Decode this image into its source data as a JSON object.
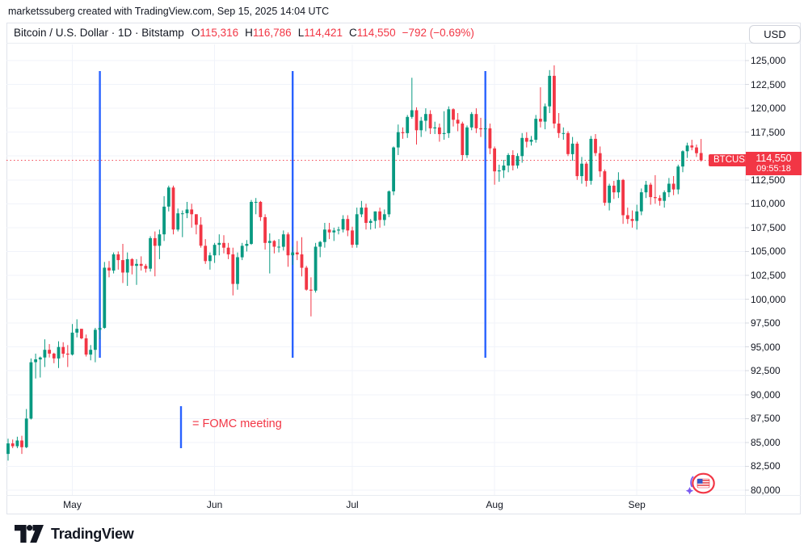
{
  "attribution": "marketssuberg created with TradingView.com, Sep 15, 2025 14:04 UTC",
  "header": {
    "title": "Bitcoin / U.S. Dollar · 1D · Bitstamp",
    "ohlc": {
      "o_label": "O",
      "o": "115,316",
      "h_label": "H",
      "h": "116,786",
      "l_label": "L",
      "l": "114,421",
      "c_label": "C",
      "c": "114,550",
      "change": "−792 (−0.69%)"
    },
    "currency": "USD"
  },
  "price_label": {
    "symbol": "BTCUSD",
    "price": "114,550",
    "countdown": "09:55:18"
  },
  "legend": {
    "text": "= FOMC meeting"
  },
  "footer": {
    "brand": "TradingView"
  },
  "colors": {
    "up": "#089981",
    "down": "#f23645",
    "fomc_line": "#2962ff",
    "grid": "#f0f3fa",
    "axis_text": "#131722",
    "label_bg": "#f23645"
  },
  "chart_data": {
    "type": "candlestick",
    "title": "Bitcoin / U.S. Dollar, 1D, Bitstamp",
    "last_price": 114550,
    "y_axis": {
      "min": 80000,
      "max": 125000,
      "step": 2500
    },
    "x_axis": {
      "ticks": [
        {
          "label": "May",
          "index": 14
        },
        {
          "label": "Jun",
          "index": 45
        },
        {
          "label": "Jul",
          "index": 75
        },
        {
          "label": "Aug",
          "index": 106
        },
        {
          "label": "Sep",
          "index": 137
        }
      ]
    },
    "fomc_indices": [
      20,
      62,
      104
    ],
    "grid": true,
    "legend_position": "lower-left",
    "candles": [
      [
        83800,
        85400,
        83100,
        84900
      ],
      [
        84900,
        85300,
        84400,
        84600
      ],
      [
        84600,
        85600,
        84400,
        85200
      ],
      [
        85200,
        85700,
        83800,
        84500
      ],
      [
        84500,
        88500,
        84400,
        87500
      ],
      [
        87500,
        93800,
        87400,
        93400
      ],
      [
        93400,
        94300,
        91700,
        93700
      ],
      [
        93700,
        94000,
        91800,
        93900
      ],
      [
        93900,
        95800,
        92900,
        94700
      ],
      [
        94700,
        95300,
        93900,
        94300
      ],
      [
        94300,
        94400,
        93300,
        93800
      ],
      [
        93800,
        95600,
        92800,
        95000
      ],
      [
        95000,
        95500,
        93900,
        94300
      ],
      [
        94300,
        95200,
        92900,
        94200
      ],
      [
        94200,
        97400,
        94100,
        96500
      ],
      [
        96500,
        97900,
        96000,
        96900
      ],
      [
        96900,
        96900,
        95800,
        95900
      ],
      [
        95900,
        96300,
        94000,
        94200
      ],
      [
        94200,
        95200,
        93600,
        94700
      ],
      [
        94700,
        97000,
        93400,
        96800
      ],
      [
        96800,
        97700,
        95800,
        97000
      ],
      [
        97000,
        103900,
        96900,
        103300
      ],
      [
        103300,
        104000,
        102300,
        103000
      ],
      [
        103000,
        104900,
        102700,
        104700
      ],
      [
        104700,
        105000,
        103100,
        104100
      ],
      [
        104100,
        105800,
        101700,
        102800
      ],
      [
        102800,
        104900,
        101400,
        104200
      ],
      [
        104200,
        104300,
        102600,
        103500
      ],
      [
        103500,
        104200,
        101500,
        103700
      ],
      [
        103700,
        104500,
        103000,
        103500
      ],
      [
        103500,
        103700,
        102800,
        103200
      ],
      [
        103200,
        106600,
        102900,
        106400
      ],
      [
        106400,
        107100,
        102400,
        105600
      ],
      [
        105600,
        107300,
        104200,
        106800
      ],
      [
        106800,
        110800,
        106100,
        109700
      ],
      [
        109700,
        111900,
        109200,
        111700
      ],
      [
        111700,
        111900,
        106800,
        107300
      ],
      [
        107300,
        109500,
        107100,
        109000
      ],
      [
        109000,
        109300,
        106500,
        109000
      ],
      [
        109000,
        110200,
        108500,
        109400
      ],
      [
        109400,
        110000,
        107500,
        108900
      ],
      [
        108900,
        108900,
        106800,
        107800
      ],
      [
        107800,
        108600,
        105400,
        105600
      ],
      [
        105600,
        106300,
        103700,
        104000
      ],
      [
        104000,
        104900,
        103100,
        104600
      ],
      [
        104600,
        105900,
        103800,
        105700
      ],
      [
        105700,
        106800,
        104600,
        105900
      ],
      [
        105900,
        106700,
        104800,
        105400
      ],
      [
        105400,
        105900,
        104200,
        104700
      ],
      [
        104700,
        105400,
        100400,
        101600
      ],
      [
        101600,
        104900,
        101000,
        104400
      ],
      [
        104400,
        105900,
        104100,
        105600
      ],
      [
        105600,
        106200,
        105000,
        105800
      ],
      [
        105800,
        110400,
        105700,
        110200
      ],
      [
        110200,
        110600,
        108900,
        110200
      ],
      [
        110200,
        110300,
        108200,
        108600
      ],
      [
        108600,
        108900,
        105200,
        105900
      ],
      [
        105900,
        106900,
        102700,
        106100
      ],
      [
        106100,
        106200,
        104800,
        105500
      ],
      [
        105500,
        106300,
        104900,
        105500
      ],
      [
        105500,
        107200,
        105100,
        106800
      ],
      [
        106800,
        107000,
        103400,
        104600
      ],
      [
        104600,
        105500,
        103600,
        104900
      ],
      [
        104900,
        106100,
        104100,
        104700
      ],
      [
        104700,
        106500,
        102400,
        103300
      ],
      [
        103300,
        103500,
        100900,
        101000
      ],
      [
        101000,
        102300,
        98200,
        100900
      ],
      [
        100900,
        105900,
        100700,
        105500
      ],
      [
        105500,
        106100,
        104400,
        106000
      ],
      [
        106000,
        108000,
        105400,
        107300
      ],
      [
        107300,
        108000,
        106300,
        107000
      ],
      [
        107000,
        107500,
        106100,
        107200
      ],
      [
        107200,
        107600,
        106800,
        107300
      ],
      [
        107300,
        108800,
        107000,
        108400
      ],
      [
        108400,
        108800,
        106600,
        107200
      ],
      [
        107200,
        107600,
        105400,
        105700
      ],
      [
        105700,
        109600,
        105400,
        108900
      ],
      [
        108900,
        110300,
        108600,
        109600
      ],
      [
        109600,
        110000,
        107300,
        108000
      ],
      [
        108000,
        108400,
        107300,
        108200
      ],
      [
        108200,
        109200,
        107400,
        109200
      ],
      [
        109200,
        109600,
        107500,
        108300
      ],
      [
        108300,
        109400,
        107700,
        108900
      ],
      [
        108900,
        111400,
        108600,
        111300
      ],
      [
        111300,
        116000,
        110900,
        115900
      ],
      [
        115900,
        118300,
        115100,
        117500
      ],
      [
        117500,
        118000,
        116800,
        117400
      ],
      [
        117400,
        119300,
        116900,
        119100
      ],
      [
        119100,
        123200,
        118900,
        119800
      ],
      [
        119800,
        120100,
        116200,
        117700
      ],
      [
        117700,
        119100,
        117000,
        118700
      ],
      [
        118700,
        120000,
        117600,
        119400
      ],
      [
        119400,
        119800,
        117300,
        117900
      ],
      [
        117900,
        118600,
        117300,
        118000
      ],
      [
        118000,
        118400,
        116500,
        117300
      ],
      [
        117300,
        119700,
        116700,
        117400
      ],
      [
        117400,
        120200,
        116900,
        119900
      ],
      [
        119900,
        120000,
        118100,
        118800
      ],
      [
        118800,
        119500,
        117600,
        118400
      ],
      [
        118400,
        118600,
        114500,
        115100
      ],
      [
        115100,
        118200,
        114800,
        118000
      ],
      [
        118000,
        119600,
        117700,
        119400
      ],
      [
        119400,
        120000,
        117400,
        117900
      ],
      [
        117900,
        119000,
        117000,
        117800
      ],
      [
        117800,
        118900,
        116800,
        117900
      ],
      [
        117900,
        118400,
        115200,
        115800
      ],
      [
        115800,
        116000,
        112000,
        113400
      ],
      [
        113400,
        114100,
        112300,
        113500
      ],
      [
        113500,
        114600,
        112700,
        114000
      ],
      [
        114000,
        115300,
        113300,
        115100
      ],
      [
        115100,
        115600,
        113500,
        114000
      ],
      [
        114000,
        115300,
        113700,
        115000
      ],
      [
        115000,
        117400,
        114300,
        116900
      ],
      [
        116900,
        117500,
        115900,
        116500
      ],
      [
        116500,
        117100,
        116100,
        116700
      ],
      [
        116700,
        119300,
        116400,
        118900
      ],
      [
        118900,
        122200,
        118000,
        118600
      ],
      [
        118600,
        120500,
        117800,
        120200
      ],
      [
        120200,
        124000,
        119500,
        123400
      ],
      [
        123400,
        124500,
        117900,
        118400
      ],
      [
        118400,
        119500,
        116900,
        117400
      ],
      [
        117400,
        118000,
        116700,
        117400
      ],
      [
        117400,
        117600,
        115000,
        115200
      ],
      [
        115200,
        117000,
        114500,
        116300
      ],
      [
        116300,
        116500,
        112500,
        112900
      ],
      [
        112900,
        114900,
        112100,
        114200
      ],
      [
        114200,
        114400,
        111800,
        112400
      ],
      [
        112400,
        117100,
        112000,
        116800
      ],
      [
        116800,
        117300,
        115000,
        115300
      ],
      [
        115300,
        116000,
        112800,
        113400
      ],
      [
        113400,
        113600,
        109800,
        110100
      ],
      [
        110100,
        112100,
        109300,
        111900
      ],
      [
        111900,
        112400,
        110500,
        111200
      ],
      [
        111200,
        113300,
        110600,
        112500
      ],
      [
        112500,
        112600,
        107900,
        108800
      ],
      [
        108800,
        109600,
        107900,
        108400
      ],
      [
        108400,
        109300,
        107500,
        108200
      ],
      [
        108200,
        109900,
        107300,
        109200
      ],
      [
        109200,
        111600,
        108800,
        111200
      ],
      [
        111200,
        112400,
        110600,
        112000
      ],
      [
        112000,
        112200,
        109900,
        110700
      ],
      [
        110700,
        113000,
        110000,
        110600
      ],
      [
        110600,
        110900,
        109800,
        110300
      ],
      [
        110300,
        111400,
        109600,
        111200
      ],
      [
        111200,
        112700,
        110700,
        112100
      ],
      [
        112100,
        112900,
        110900,
        111500
      ],
      [
        111500,
        114100,
        111000,
        113900
      ],
      [
        113900,
        115600,
        113300,
        115500
      ],
      [
        115500,
        116400,
        114800,
        116100
      ],
      [
        116100,
        116700,
        115600,
        115900
      ],
      [
        115900,
        116200,
        114900,
        115300
      ],
      [
        115316,
        116786,
        114421,
        114550
      ]
    ]
  }
}
